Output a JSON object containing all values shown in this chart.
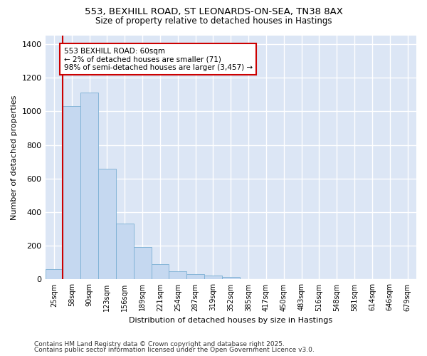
{
  "title1": "553, BEXHILL ROAD, ST LEONARDS-ON-SEA, TN38 8AX",
  "title2": "Size of property relative to detached houses in Hastings",
  "xlabel": "Distribution of detached houses by size in Hastings",
  "ylabel": "Number of detached properties",
  "categories": [
    "25sqm",
    "58sqm",
    "90sqm",
    "123sqm",
    "156sqm",
    "189sqm",
    "221sqm",
    "254sqm",
    "287sqm",
    "319sqm",
    "352sqm",
    "385sqm",
    "417sqm",
    "450sqm",
    "483sqm",
    "516sqm",
    "548sqm",
    "581sqm",
    "614sqm",
    "646sqm",
    "679sqm"
  ],
  "values": [
    62,
    1030,
    1110,
    660,
    330,
    193,
    90,
    47,
    30,
    22,
    15,
    0,
    0,
    0,
    0,
    0,
    0,
    0,
    0,
    0,
    0
  ],
  "bar_color": "#c5d8f0",
  "bar_edge_color": "#7aafd4",
  "marker_color": "#cc0000",
  "annotation_text": "553 BEXHILL ROAD: 60sqm\n← 2% of detached houses are smaller (71)\n98% of semi-detached houses are larger (3,457) →",
  "annotation_box_color": "#ffffff",
  "annotation_box_edge": "#cc0000",
  "ylim": [
    0,
    1450
  ],
  "yticks": [
    0,
    200,
    400,
    600,
    800,
    1000,
    1200,
    1400
  ],
  "plot_bg_color": "#dce6f5",
  "fig_bg_color": "#ffffff",
  "grid_color": "#ffffff",
  "footnote1": "Contains HM Land Registry data © Crown copyright and database right 2025.",
  "footnote2": "Contains public sector information licensed under the Open Government Licence v3.0."
}
